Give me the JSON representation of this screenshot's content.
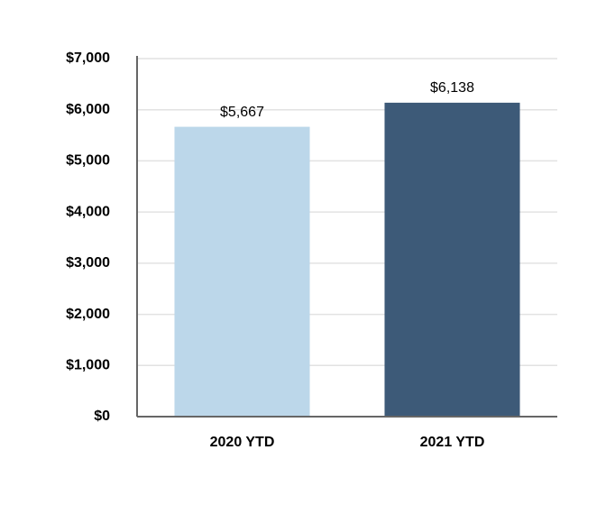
{
  "chart_data": {
    "type": "bar",
    "categories": [
      "2020 YTD",
      "2021 YTD"
    ],
    "values": [
      5667,
      6138
    ],
    "value_labels": [
      "$5,667",
      "$6,138"
    ],
    "colors": [
      "#bcd7ea",
      "#3d5a78"
    ],
    "ylim": [
      0,
      7000
    ],
    "yticks": [
      {
        "value": 0,
        "label": "$0"
      },
      {
        "value": 1000,
        "label": "$1,000"
      },
      {
        "value": 2000,
        "label": "$2,000"
      },
      {
        "value": 3000,
        "label": "$3,000"
      },
      {
        "value": 4000,
        "label": "$4,000"
      },
      {
        "value": 5000,
        "label": "$5,000"
      },
      {
        "value": 6000,
        "label": "$6,000"
      },
      {
        "value": 7000,
        "label": "$7,000"
      }
    ],
    "grid": true
  }
}
